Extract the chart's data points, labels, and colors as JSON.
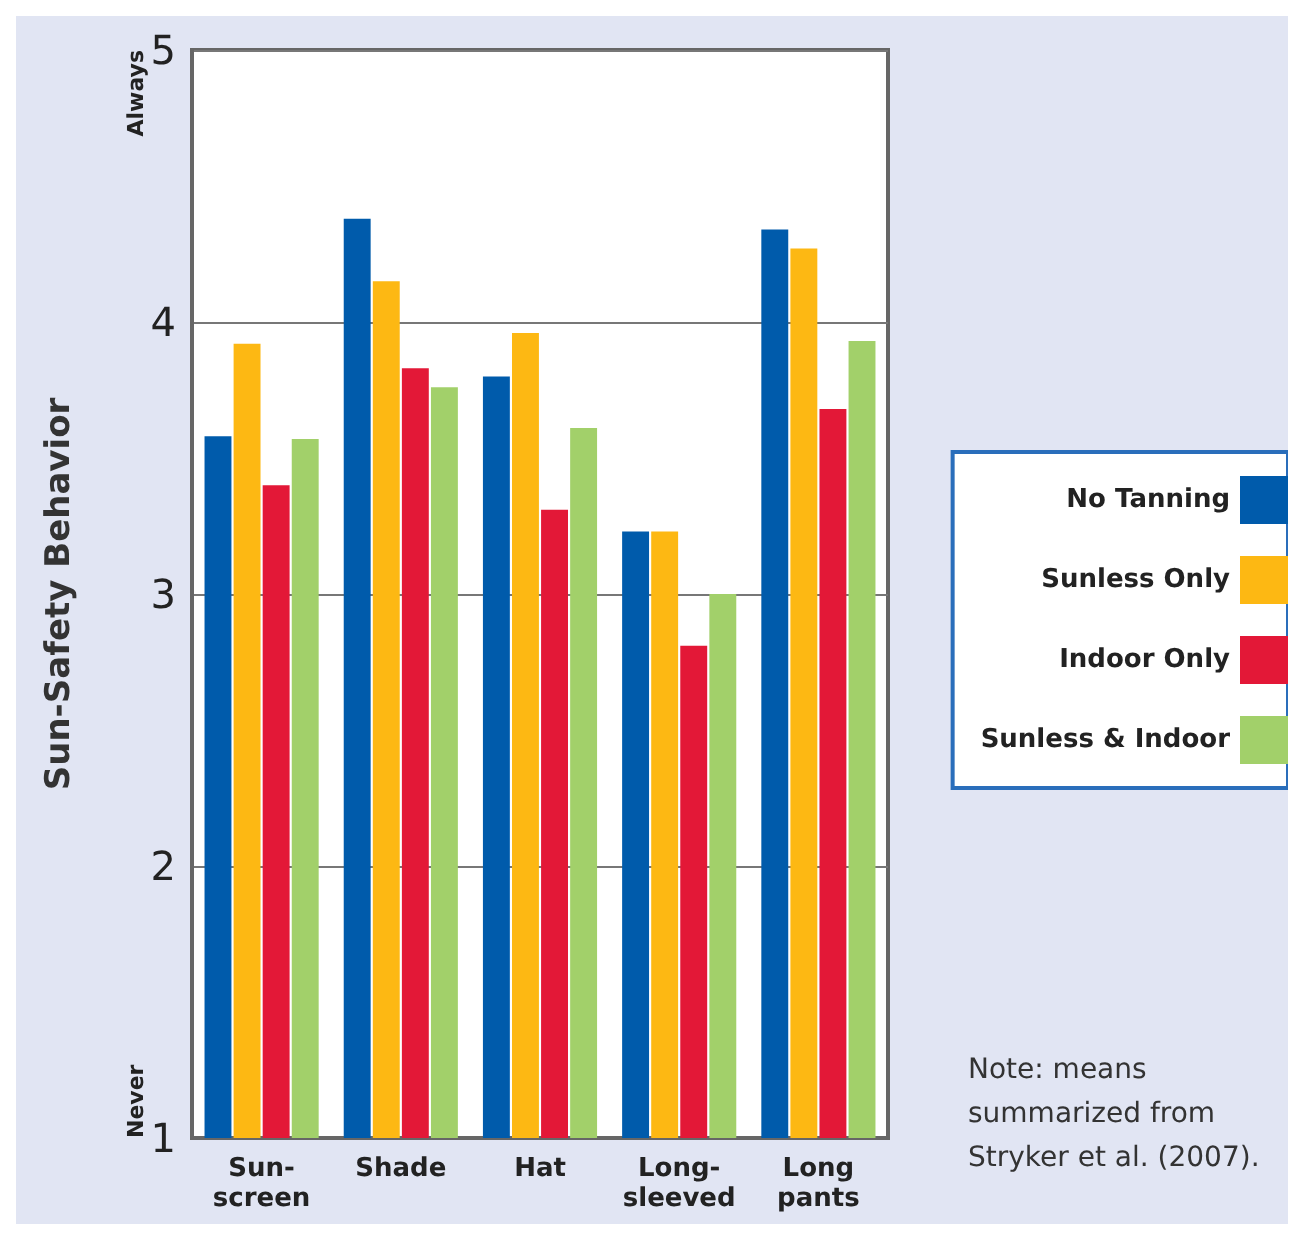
{
  "chart_data": {
    "type": "bar",
    "ylabel": "Sun-Safety Behavior",
    "categories": [
      "Sun-screen",
      "Shade",
      "Hat",
      "Long-sleeved",
      "Long pants"
    ],
    "series": [
      {
        "name": "No Tanning",
        "color": "#005bab",
        "values": [
          3.58,
          4.38,
          3.8,
          3.23,
          4.34
        ]
      },
      {
        "name": "Sunless Only",
        "color": "#fdb813",
        "values": [
          3.92,
          4.15,
          3.96,
          3.23,
          4.27
        ]
      },
      {
        "name": "Indoor Only",
        "color": "#e31837",
        "values": [
          3.4,
          3.83,
          3.31,
          2.81,
          3.68
        ]
      },
      {
        "name": "Sunless & Indoor",
        "color": "#a2d06a",
        "values": [
          3.57,
          3.76,
          3.61,
          3.0,
          3.93
        ]
      }
    ],
    "ylim": [
      1,
      5
    ],
    "yticks": [
      1,
      2,
      3,
      4,
      5
    ],
    "grid": "y",
    "legend": "right",
    "annotations": [
      "Never",
      "Always",
      "Note: means summarized from Stryker et al. (2007)."
    ]
  }
}
